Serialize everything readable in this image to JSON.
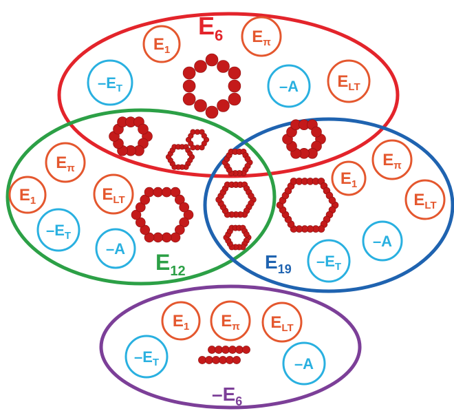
{
  "colors": {
    "red": "#e3242b",
    "green": "#2ca046",
    "blue": "#1f63b0",
    "purple": "#7c3f98",
    "orange": "#e4572e",
    "cyan": "#29b0e0",
    "bead": "#c41a1a"
  },
  "sets": [
    {
      "id": "e6",
      "label": "E",
      "sub": "6",
      "color": "red"
    },
    {
      "id": "e12",
      "label": "E",
      "sub": "12",
      "color": "green"
    },
    {
      "id": "e19",
      "label": "E",
      "sub": "19",
      "color": "blue"
    },
    {
      "id": "me6",
      "label": "–E",
      "sub": "6",
      "color": "purple"
    }
  ],
  "tokens": {
    "e1": {
      "main": "E",
      "sub": "1"
    },
    "ept": {
      "main": "E",
      "sub": "π"
    },
    "elt": {
      "main": "E",
      "sub": "LT"
    },
    "met": {
      "main": "–E",
      "sub": "T"
    },
    "ma": {
      "main": "–A",
      "sub": ""
    }
  },
  "groups": [
    {
      "set": "e6",
      "circles": [
        "e1",
        "ept",
        "met",
        "ma",
        "elt"
      ]
    },
    {
      "set": "e12",
      "circles": [
        "ept",
        "e1",
        "elt",
        "met",
        "ma"
      ]
    },
    {
      "set": "e19",
      "circles": [
        "ept",
        "e1",
        "elt",
        "ma",
        "met"
      ]
    },
    {
      "set": "me6",
      "circles": [
        "e1",
        "ept",
        "elt",
        "met",
        "ma"
      ]
    }
  ]
}
